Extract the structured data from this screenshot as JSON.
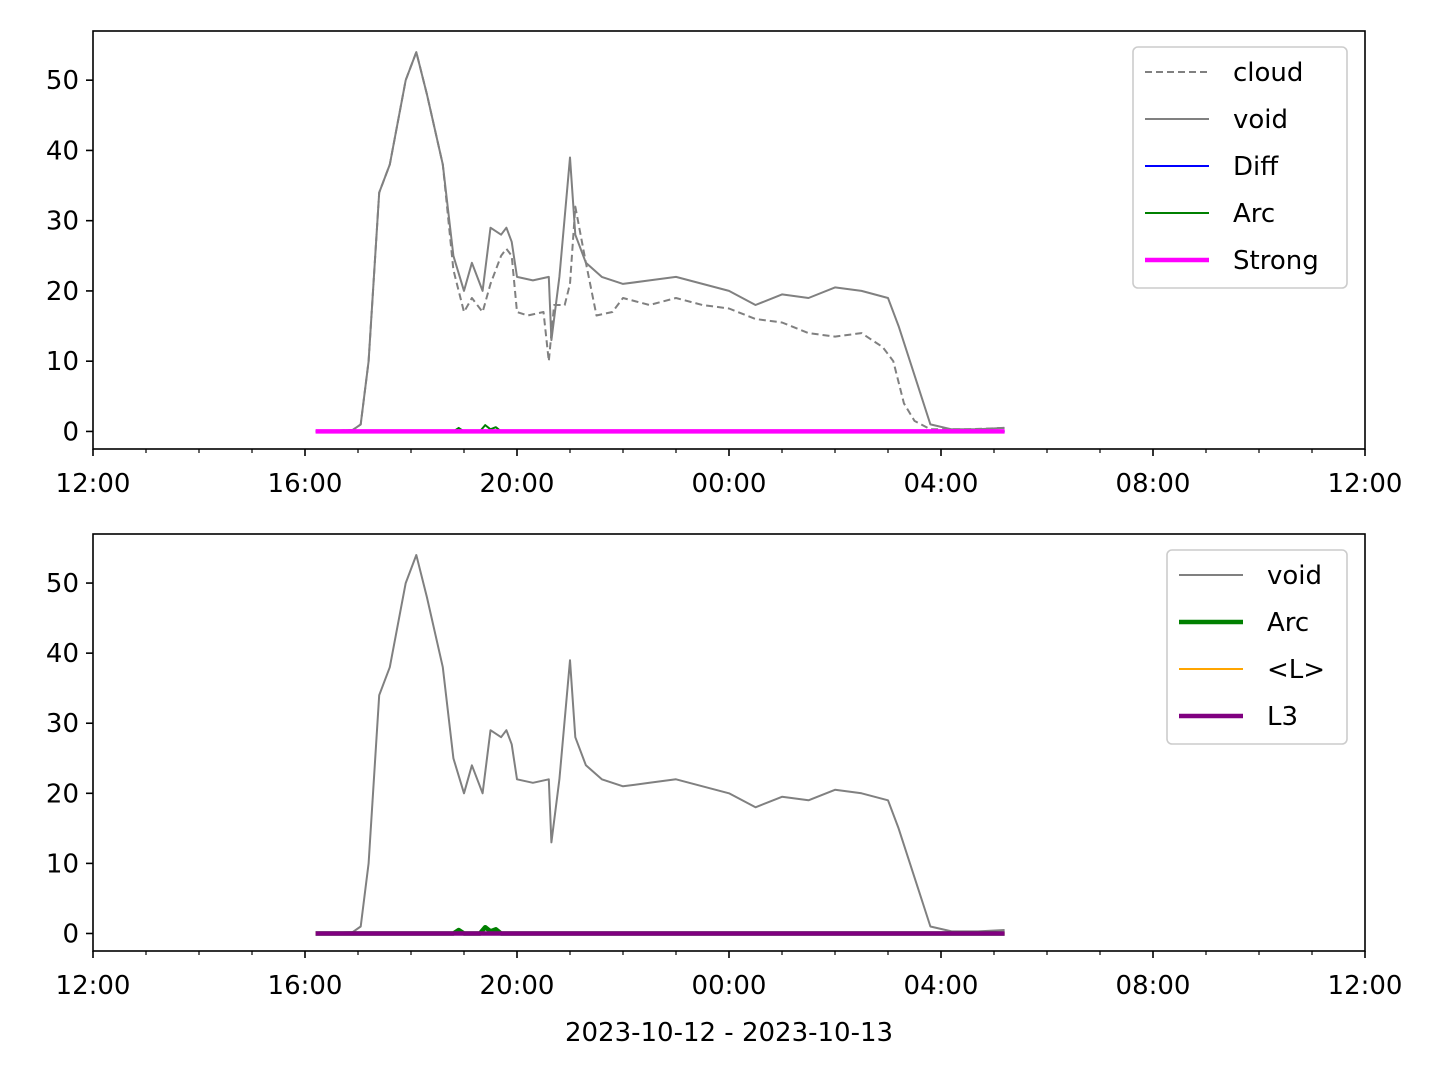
{
  "chart_data": [
    {
      "type": "line",
      "ylim": [
        -2.5,
        57
      ],
      "yticks": [
        "0",
        "10",
        "20",
        "30",
        "40",
        "50"
      ],
      "xticks": [
        "12:00",
        "16:00",
        "20:00",
        "00:00",
        "04:00",
        "08:00",
        "12:00"
      ],
      "xlim_hours": [
        12,
        36
      ],
      "xlabel": "",
      "legend_position": "top-right",
      "series": [
        {
          "name": "cloud",
          "color": "#808080",
          "style": "dashed",
          "x": [
            16.2,
            16.9,
            17.05,
            17.2,
            17.4,
            17.6,
            17.8,
            17.9,
            18.1,
            18.3,
            18.6,
            18.8,
            19.0,
            19.15,
            19.35,
            19.5,
            19.7,
            19.8,
            19.9,
            20.0,
            20.2,
            20.5,
            20.6,
            20.7,
            20.9,
            21.0,
            21.1,
            21.3,
            21.5,
            21.8,
            22.0,
            22.5,
            23.0,
            23.5,
            24.0,
            24.5,
            25.0,
            25.5,
            26.0,
            26.5,
            26.9,
            27.1,
            27.3,
            27.5,
            27.8,
            28.5,
            29.2
          ],
          "y": [
            0,
            0.2,
            1,
            10,
            34,
            38,
            46,
            50,
            54,
            48,
            38,
            23,
            17,
            19,
            17,
            21,
            25,
            26,
            25,
            17,
            16.5,
            17,
            10,
            18,
            18,
            21,
            32,
            24,
            16.5,
            17,
            19,
            18,
            19,
            18,
            17.5,
            16,
            15.5,
            14,
            13.5,
            14,
            12,
            10,
            4,
            1.5,
            0.3,
            0.3,
            0.5
          ]
        },
        {
          "name": "void",
          "color": "#808080",
          "style": "solid",
          "x": [
            16.2,
            16.9,
            17.05,
            17.2,
            17.4,
            17.6,
            17.8,
            17.9,
            18.1,
            18.3,
            18.6,
            18.8,
            19.0,
            19.15,
            19.35,
            19.5,
            19.7,
            19.8,
            19.9,
            20.0,
            20.3,
            20.6,
            20.65,
            20.8,
            21.0,
            21.1,
            21.3,
            21.6,
            22.0,
            22.5,
            23.0,
            23.5,
            24.0,
            24.5,
            25.0,
            25.5,
            26.0,
            26.5,
            27.0,
            27.2,
            27.5,
            27.8,
            28.2,
            28.7,
            29.2
          ],
          "y": [
            0,
            0.2,
            1,
            10,
            34,
            38,
            46,
            50,
            54,
            48,
            38,
            25,
            20,
            24,
            20,
            29,
            28,
            29,
            27,
            22,
            21.5,
            22,
            13,
            22,
            39,
            28,
            24,
            22,
            21,
            21.5,
            22,
            21,
            20,
            18,
            19.5,
            19,
            20.5,
            20,
            19,
            15,
            8,
            1,
            0.3,
            0.3,
            0.5
          ]
        },
        {
          "name": "Diff",
          "color": "#0000ff",
          "style": "solid",
          "x": [
            16.2,
            29.2
          ],
          "y": [
            0,
            0
          ]
        },
        {
          "name": "Arc",
          "color": "#008000",
          "style": "solid",
          "x": [
            16.2,
            18.8,
            18.9,
            19.0,
            19.3,
            19.4,
            19.5,
            19.6,
            19.7,
            29.2
          ],
          "y": [
            0,
            0,
            0.5,
            0,
            0,
            0.9,
            0.3,
            0.6,
            0,
            0
          ]
        },
        {
          "name": "Strong",
          "color": "#ff00ff",
          "style": "thick",
          "x": [
            16.2,
            29.2
          ],
          "y": [
            0,
            0
          ]
        }
      ]
    },
    {
      "type": "line",
      "ylim": [
        -2.5,
        57
      ],
      "yticks": [
        "0",
        "10",
        "20",
        "30",
        "40",
        "50"
      ],
      "xticks": [
        "12:00",
        "16:00",
        "20:00",
        "00:00",
        "04:00",
        "08:00",
        "12:00"
      ],
      "xlim_hours": [
        12,
        36
      ],
      "xlabel": "2023-10-12 - 2023-10-13",
      "legend_position": "top-right",
      "series": [
        {
          "name": "void",
          "color": "#808080",
          "style": "solid",
          "x": [
            16.2,
            16.9,
            17.05,
            17.2,
            17.4,
            17.6,
            17.8,
            17.9,
            18.1,
            18.3,
            18.6,
            18.8,
            19.0,
            19.15,
            19.35,
            19.5,
            19.7,
            19.8,
            19.9,
            20.0,
            20.3,
            20.6,
            20.65,
            20.8,
            21.0,
            21.1,
            21.3,
            21.6,
            22.0,
            22.5,
            23.0,
            23.5,
            24.0,
            24.5,
            25.0,
            25.5,
            26.0,
            26.5,
            27.0,
            27.2,
            27.5,
            27.8,
            28.2,
            28.7,
            29.2
          ],
          "y": [
            0,
            0.2,
            1,
            10,
            34,
            38,
            46,
            50,
            54,
            48,
            38,
            25,
            20,
            24,
            20,
            29,
            28,
            29,
            27,
            22,
            21.5,
            22,
            13,
            22,
            39,
            28,
            24,
            22,
            21,
            21.5,
            22,
            21,
            20,
            18,
            19.5,
            19,
            20.5,
            20,
            19,
            15,
            8,
            1,
            0.3,
            0.3,
            0.5
          ]
        },
        {
          "name": "Arc",
          "color": "#008000",
          "style": "thick",
          "x": [
            16.2,
            18.8,
            18.9,
            19.0,
            19.3,
            19.4,
            19.5,
            19.6,
            19.7,
            29.2
          ],
          "y": [
            0,
            0,
            0.5,
            0,
            0,
            0.9,
            0.3,
            0.6,
            0,
            0
          ]
        },
        {
          "name": "<L>",
          "color": "#ffa500",
          "style": "solid",
          "x": [
            16.2,
            29.2
          ],
          "y": [
            0,
            0
          ]
        },
        {
          "name": "L3",
          "color": "#800080",
          "style": "thick",
          "x": [
            16.2,
            29.2
          ],
          "y": [
            0,
            0
          ]
        }
      ]
    }
  ]
}
